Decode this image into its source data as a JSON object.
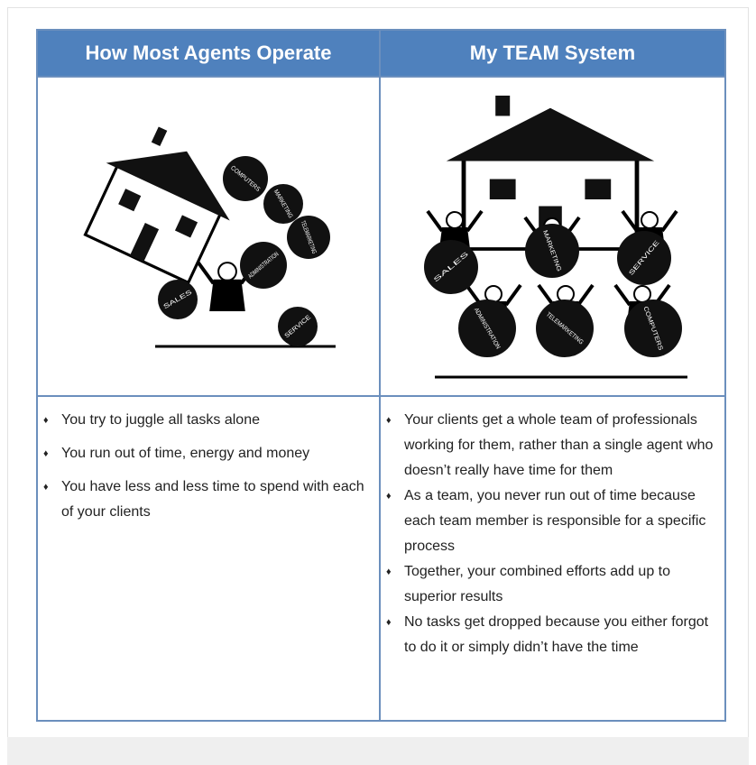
{
  "table": {
    "headers": [
      "How Most Agents Operate",
      "My TEAM System"
    ],
    "illustrations": [
      {
        "labels": [
          "COMPUTERS",
          "MARKETING",
          "TELEMARKETING",
          "ADMINISTRATION",
          "SALES",
          "SERVICE"
        ]
      },
      {
        "labels": [
          "SALES",
          "MARKETING",
          "SERVICE",
          "ADMINISTRATION",
          "TELEMARKETING",
          "COMPUTERS"
        ]
      }
    ],
    "bullets": [
      [
        "You try to juggle all tasks alone",
        "You run out of time, energy and money",
        "You have less and less time to spend with each of your clients"
      ],
      [
        "Your clients get a whole team of professionals working for them, rather than a single agent who doesn’t really have time for them",
        "As a team, you never run out of time because each team member is responsible for a specific process",
        "Together, your combined efforts add up to superior results",
        "No tasks get dropped because you either forgot to do it or simply didn’t have the time"
      ]
    ]
  }
}
